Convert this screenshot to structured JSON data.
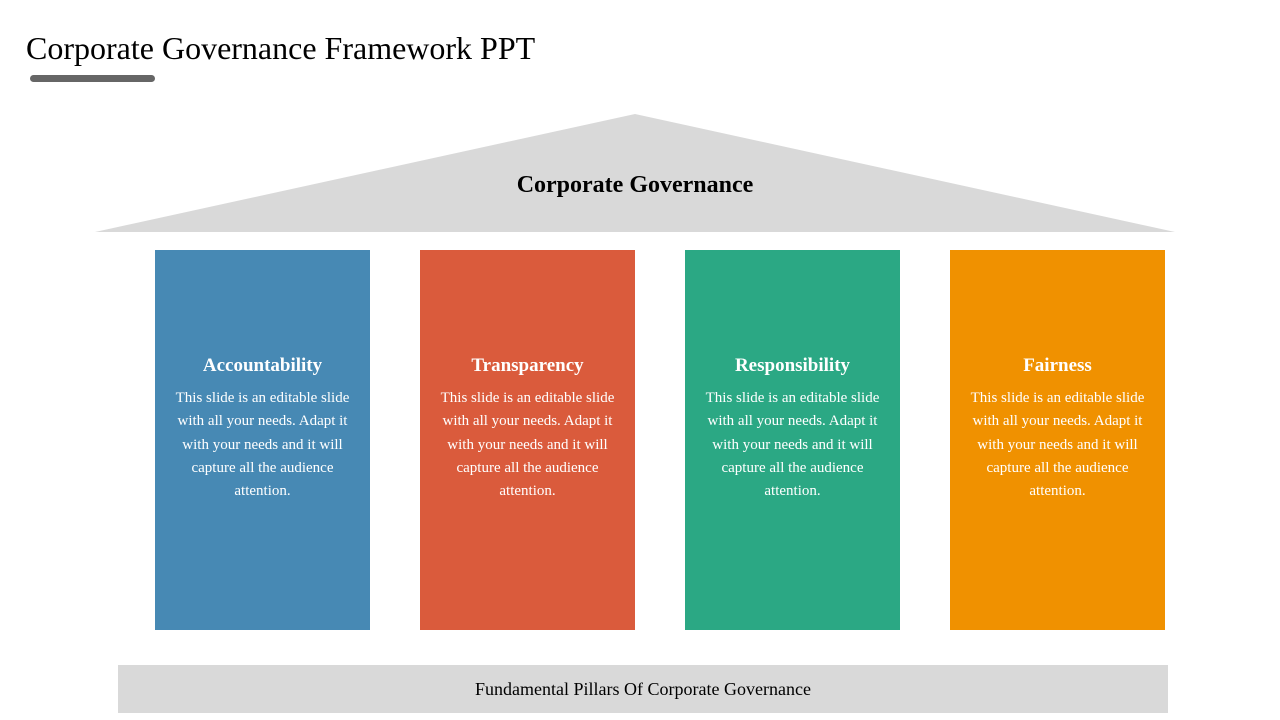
{
  "slide": {
    "title": "Corporate Governance Framework PPT",
    "underline_color": "#666666",
    "background_color": "#ffffff"
  },
  "roof": {
    "label": "Corporate Governance",
    "fill_color": "#d9d9d9",
    "label_color": "#000000",
    "label_fontsize": 24
  },
  "pillars": [
    {
      "title": "Accountability",
      "body": "This slide is an editable slide with all your needs. Adapt it with your needs and it will capture all the audience attention.",
      "bg_color": "#4789b4"
    },
    {
      "title": "Transparency",
      "body": "This slide is an editable slide with all your needs. Adapt it with your needs and it will capture all the audience attention.",
      "bg_color": "#da5b3c"
    },
    {
      "title": "Responsibility",
      "body": "This slide is an editable slide with all your needs. Adapt it with your needs and it will capture all the audience attention.",
      "bg_color": "#2ba884"
    },
    {
      "title": "Fairness",
      "body": "This slide is an editable slide with all your needs. Adapt it with your needs and it will capture all the audience attention.",
      "bg_color": "#f09100"
    }
  ],
  "base": {
    "label": "Fundamental Pillars Of Corporate Governance",
    "fill_color": "#d9d9d9",
    "label_color": "#000000",
    "label_fontsize": 18
  },
  "layout": {
    "pillar_width": 215,
    "pillar_height": 380,
    "pillar_title_fontsize": 19,
    "pillar_body_fontsize": 15,
    "text_color": "#ffffff"
  }
}
